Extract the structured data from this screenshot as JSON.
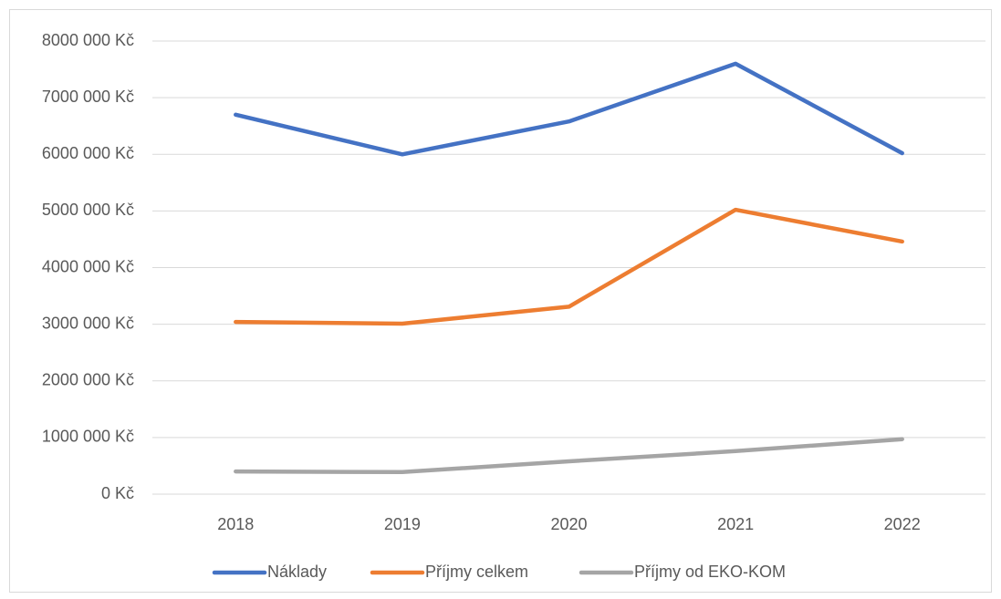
{
  "chart_data": {
    "type": "line",
    "categories": [
      "2018",
      "2019",
      "2020",
      "2021",
      "2022"
    ],
    "series": [
      {
        "name": "Náklady",
        "color": "#4472c4",
        "values": [
          6700000,
          6000000,
          6580000,
          7600000,
          6020000
        ]
      },
      {
        "name": "Příjmy celkem",
        "color": "#ed7d31",
        "values": [
          3040000,
          3010000,
          3310000,
          5020000,
          4460000
        ]
      },
      {
        "name": "Příjmy od EKO-KOM",
        "color": "#a5a5a5",
        "values": [
          400000,
          390000,
          580000,
          760000,
          970000
        ]
      }
    ],
    "ylim": [
      0,
      8000000
    ],
    "yticks": [
      {
        "value": 0,
        "label": "0 Kč"
      },
      {
        "value": 1000000,
        "label": "1000 000 Kč"
      },
      {
        "value": 2000000,
        "label": "2000 000 Kč"
      },
      {
        "value": 3000000,
        "label": "3000 000 Kč"
      },
      {
        "value": 4000000,
        "label": "4000 000 Kč"
      },
      {
        "value": 5000000,
        "label": "5000 000 Kč"
      },
      {
        "value": 6000000,
        "label": "6000 000 Kč"
      },
      {
        "value": 7000000,
        "label": "7000 000 Kč"
      },
      {
        "value": 8000000,
        "label": "8000 000 Kč"
      }
    ],
    "grid": true,
    "legend": "bottom"
  }
}
